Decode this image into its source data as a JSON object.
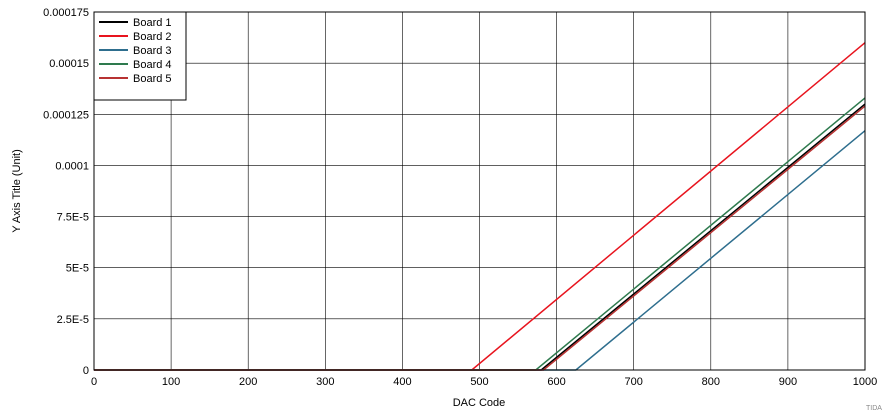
{
  "chart_data": {
    "type": "line",
    "title": "",
    "xlabel": "DAC Code",
    "ylabel": "Y Axis Title (Unit)",
    "xlim": [
      0,
      1000
    ],
    "ylim": [
      0,
      0.000175
    ],
    "x_ticks": [
      0,
      100,
      200,
      300,
      400,
      500,
      600,
      700,
      800,
      900,
      1000
    ],
    "x_tick_labels": [
      "0",
      "100",
      "200",
      "300",
      "400",
      "500",
      "600",
      "700",
      "800",
      "900",
      "1000"
    ],
    "y_ticks": [
      0,
      2.5e-05,
      5e-05,
      7.5e-05,
      0.0001,
      0.000125,
      0.00015,
      0.000175
    ],
    "y_tick_labels": [
      "0",
      "2.5E-5",
      "5E-5",
      "7.5E-5",
      "0.0001",
      "0.000125",
      "0.00015",
      "0.000175"
    ],
    "grid": true,
    "legend_position": "top-left",
    "series": [
      {
        "name": "Board 1",
        "color": "#000000",
        "x": [
          0,
          580,
          1000
        ],
        "y": [
          0,
          0,
          0.00013
        ]
      },
      {
        "name": "Board 2",
        "color": "#e8141e",
        "x": [
          0,
          490,
          1000
        ],
        "y": [
          0,
          0,
          0.00016
        ]
      },
      {
        "name": "Board 3",
        "color": "#2e6e8e",
        "x": [
          0,
          625,
          1000
        ],
        "y": [
          0,
          0,
          0.000117
        ]
      },
      {
        "name": "Board 4",
        "color": "#2e7a4e",
        "x": [
          0,
          573,
          1000
        ],
        "y": [
          0,
          0,
          0.000133
        ]
      },
      {
        "name": "Board 5",
        "color": "#b83232",
        "x": [
          0,
          583,
          1000
        ],
        "y": [
          0,
          0,
          0.000129
        ]
      }
    ]
  },
  "footer_text": "TIDA"
}
